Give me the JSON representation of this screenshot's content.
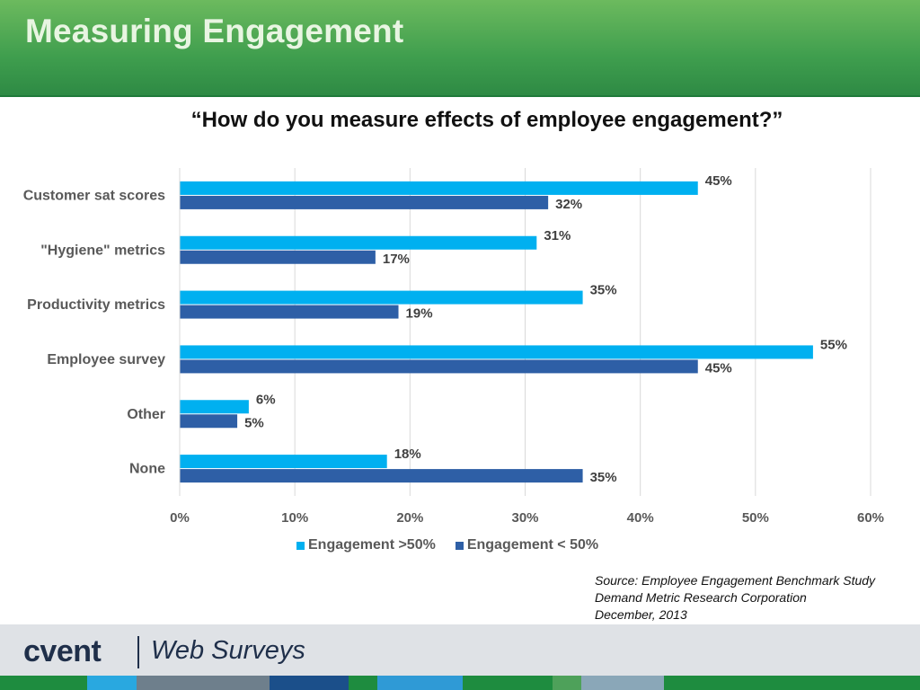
{
  "header": {
    "title": "Measuring Engagement"
  },
  "question": "“How do you measure effects of employee engagement?”",
  "chart_data": {
    "type": "bar",
    "orientation": "horizontal",
    "categories": [
      "Customer sat scores",
      "\"Hygiene\" metrics",
      "Productivity metrics",
      "Employee survey",
      "Other",
      "None"
    ],
    "series": [
      {
        "name": "Engagement >50%",
        "values": [
          45,
          31,
          35,
          55,
          6,
          18
        ],
        "labels": [
          "45%",
          "31%",
          "35%",
          "55%",
          "6%",
          "18%"
        ],
        "color": "#00b0f0"
      },
      {
        "name": "Engagement < 50%",
        "values": [
          32,
          17,
          19,
          45,
          5,
          35
        ],
        "labels": [
          "32%",
          "17%",
          "19%",
          "45%",
          "5%",
          "35%"
        ],
        "color": "#2e5fa6"
      }
    ],
    "xlim": [
      0,
      60
    ],
    "xticks": [
      0,
      10,
      20,
      30,
      40,
      50,
      60
    ],
    "xtick_labels": [
      "0%",
      "10%",
      "20%",
      "30%",
      "40%",
      "50%",
      "60%"
    ],
    "grid": "vertical",
    "legend": "bottom"
  },
  "source": {
    "line1": "Source: Employee Engagement Benchmark Study",
    "line2": "Demand Metric Research Corporation",
    "line3": "December, 2013"
  },
  "footer": {
    "logo_main": "cvent",
    "logo_sub": "Web Surveys",
    "logo_color": "#1f2f4a"
  },
  "stripe_colors": [
    "#1e8c3f",
    "#29a8e0",
    "#6e7f8c",
    "#1b4f8a",
    "#1e8c3f",
    "#2f9ad6",
    "#1e8c3f",
    "#4ea15a",
    "#8aa7b8",
    "#1e8c3f"
  ]
}
